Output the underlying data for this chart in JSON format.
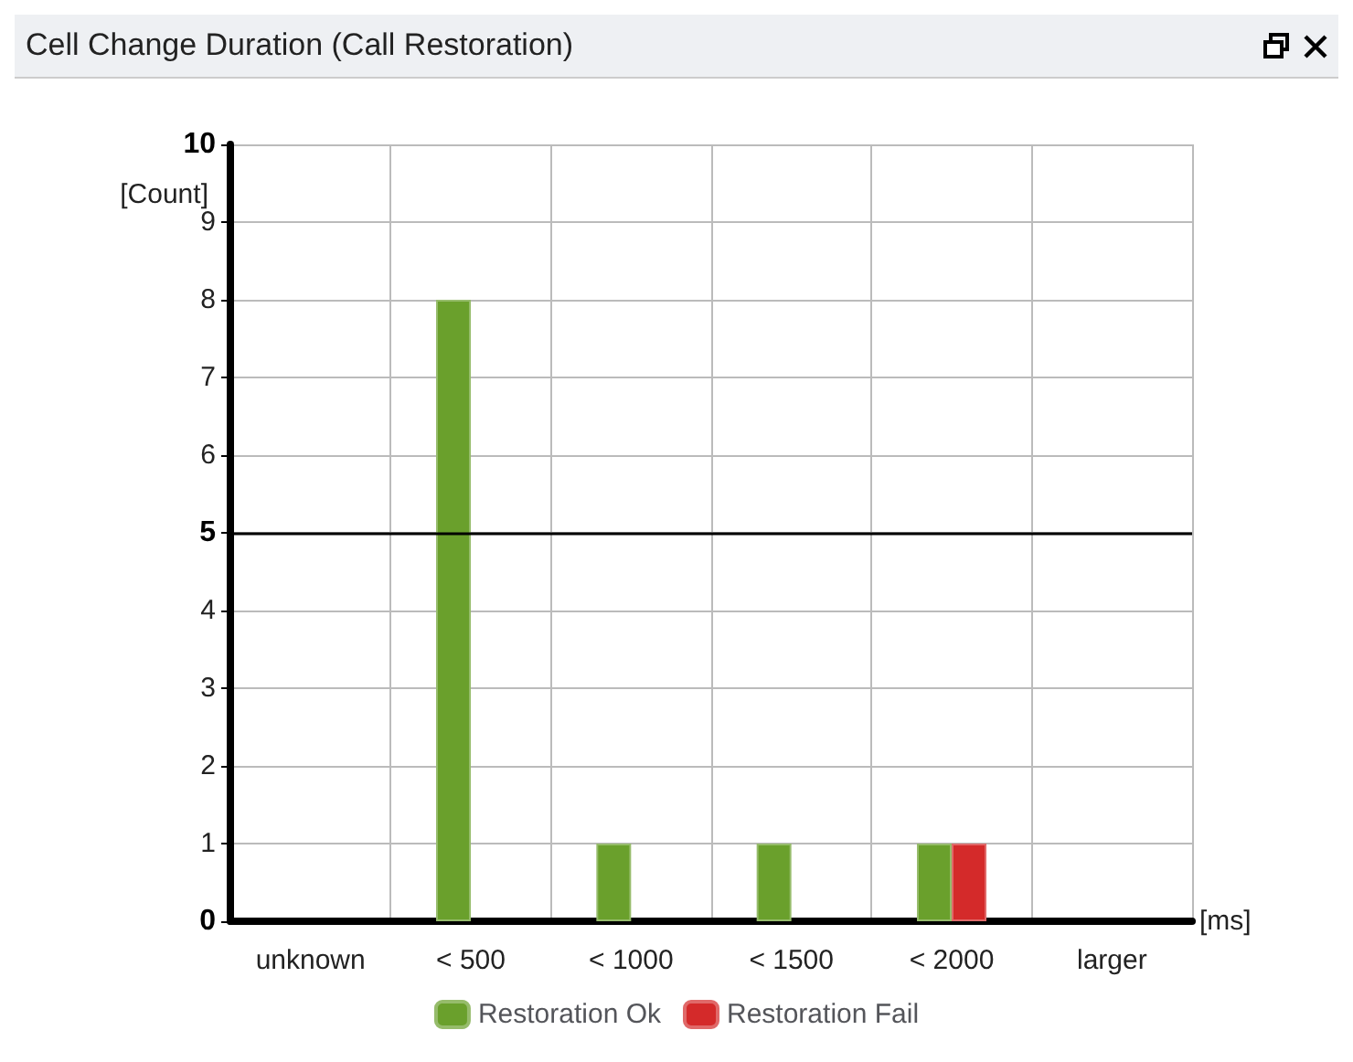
{
  "chart_data": {
    "type": "bar",
    "title": "Cell Change Duration (Call Restoration)",
    "xlabel": "[ms]",
    "ylabel": "[Count]",
    "categories": [
      "unknown",
      "< 500",
      "< 1000",
      "< 1500",
      "< 2000",
      "larger"
    ],
    "series": [
      {
        "name": "Restoration Ok",
        "color": "#6aa02c",
        "values": [
          0,
          8,
          1,
          1,
          1,
          0
        ]
      },
      {
        "name": "Restoration Fail",
        "color": "#d42a2a",
        "values": [
          0,
          0,
          0,
          0,
          1,
          0
        ]
      }
    ],
    "ylim": [
      0,
      10
    ],
    "yticks": [
      0,
      1,
      2,
      3,
      4,
      5,
      6,
      7,
      8,
      9,
      10
    ],
    "ref_lines": [
      {
        "axis": "y",
        "value": 5,
        "color": "#000000"
      }
    ],
    "grid": true,
    "legend": "bottom"
  }
}
